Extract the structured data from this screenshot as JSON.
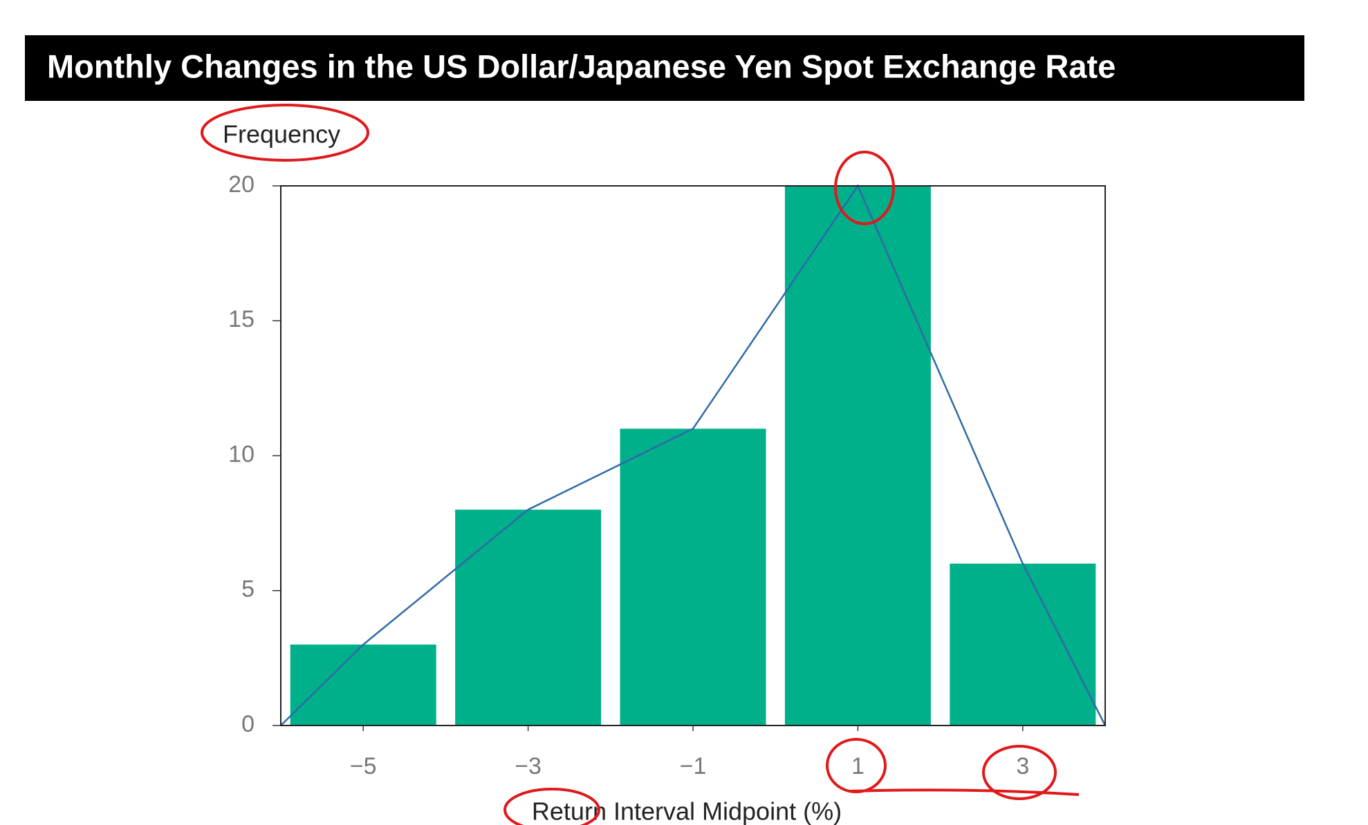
{
  "chart_data": {
    "type": "bar",
    "title": "Monthly Changes in the US Dollar/Japanese Yen Spot Exchange Rate",
    "ylabel": "Frequency",
    "xlabel": "Return Interval Midpoint (%)",
    "x": [
      -5,
      -3,
      -1,
      1,
      3
    ],
    "values": [
      3,
      8,
      11,
      20,
      6
    ],
    "color": "#00b08a",
    "xlim": [
      -6,
      4
    ],
    "xticks": [
      {
        "value": -5,
        "label": "−5"
      },
      {
        "value": -3,
        "label": "−3"
      },
      {
        "value": -1,
        "label": "−1"
      },
      1,
      3
    ],
    "ylim": [
      0,
      20
    ],
    "yticks": [
      0,
      5,
      10,
      15,
      20
    ],
    "line": {
      "x": [
        -6,
        -5,
        -3,
        -1,
        1,
        3,
        4
      ],
      "values": [
        0,
        3,
        8,
        11,
        20,
        6,
        0
      ],
      "color": "#2f6aa6"
    }
  }
}
